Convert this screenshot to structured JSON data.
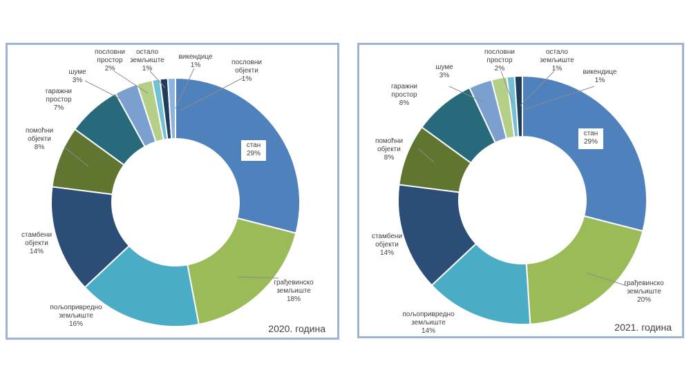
{
  "chart_data": [
    {
      "type": "pie",
      "title": "2020. година",
      "categories": [
        "стан",
        "грађевинско земљиште",
        "пољопривредно земљиште",
        "стамбени објекти",
        "помоћни објекти",
        "гаражни простор",
        "шуме",
        "пословни простор",
        "остало земљиште",
        "викендице",
        "пословни објекти"
      ],
      "values": [
        29,
        18,
        16,
        14,
        8,
        7,
        3,
        2,
        1,
        1,
        1
      ],
      "labels": [
        {
          "lines": [
            "стан",
            "29%"
          ]
        },
        {
          "lines": [
            "грађевинско",
            "земљиште",
            "18%"
          ]
        },
        {
          "lines": [
            "пољопривредно",
            "земљиште",
            "16%"
          ]
        },
        {
          "lines": [
            "стамбени",
            "објекти",
            "14%"
          ]
        },
        {
          "lines": [
            "помоћни",
            "објекти",
            "8%"
          ]
        },
        {
          "lines": [
            "гаражни",
            "простор",
            "7%"
          ]
        },
        {
          "lines": [
            "шуме",
            "3%"
          ]
        },
        {
          "lines": [
            "пословни",
            "простор",
            "2%"
          ]
        },
        {
          "lines": [
            "остало",
            "земљиште",
            "1%"
          ]
        },
        {
          "lines": [
            "викендице",
            "1%"
          ]
        },
        {
          "lines": [
            "пословни",
            "објекти",
            "1%"
          ]
        }
      ],
      "colors": [
        "#4f81bd",
        "#9bbb59",
        "#4bacc6",
        "#2c4d75",
        "#5f7530",
        "#276a7c",
        "#7ba0d0",
        "#b6cf87",
        "#72c0d5",
        "#1f3b5e",
        "#8db3e2"
      ]
    },
    {
      "type": "pie",
      "title": "2021. година",
      "categories": [
        "стан",
        "грађевинско земљиште",
        "пољопривредно земљиште",
        "стамбени објекти",
        "помоћни објекти",
        "гаражни простор",
        "шуме",
        "пословни простор",
        "остало земљиште",
        "викендице"
      ],
      "values": [
        29,
        20,
        14,
        14,
        8,
        8,
        3,
        2,
        1,
        1
      ],
      "labels": [
        {
          "lines": [
            "стан",
            "29%"
          ]
        },
        {
          "lines": [
            "грађевинско",
            "земљиште",
            "20%"
          ]
        },
        {
          "lines": [
            "пољопривредно",
            "земљиште",
            "14%"
          ]
        },
        {
          "lines": [
            "стамбени",
            "објекти",
            "14%"
          ]
        },
        {
          "lines": [
            "помоћни",
            "објекти",
            "8%"
          ]
        },
        {
          "lines": [
            "гаражни",
            "простор",
            "8%"
          ]
        },
        {
          "lines": [
            "шуме",
            "3%"
          ]
        },
        {
          "lines": [
            "пословни",
            "простор",
            "2%"
          ]
        },
        {
          "lines": [
            "остало",
            "земљиште",
            "1%"
          ]
        },
        {
          "lines": [
            "викендице",
            "1%"
          ]
        }
      ],
      "colors": [
        "#4f81bd",
        "#9bbb59",
        "#4bacc6",
        "#2c4d75",
        "#5f7530",
        "#276a7c",
        "#7ba0d0",
        "#b6cf87",
        "#72c0d5",
        "#1f3b5e"
      ]
    }
  ]
}
